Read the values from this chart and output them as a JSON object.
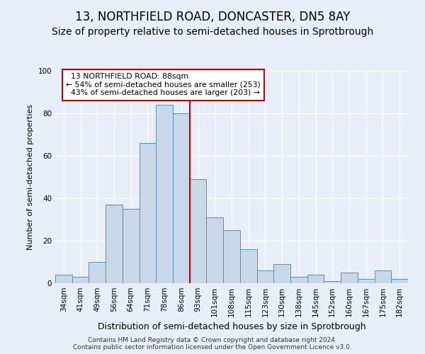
{
  "title": "13, NORTHFIELD ROAD, DONCASTER, DN5 8AY",
  "subtitle": "Size of property relative to semi-detached houses in Sprotbrough",
  "xlabel": "Distribution of semi-detached houses by size in Sprotbrough",
  "ylabel": "Number of semi-detached properties",
  "footer_line1": "Contains HM Land Registry data © Crown copyright and database right 2024.",
  "footer_line2": "Contains public sector information licensed under the Open Government Licence v3.0.",
  "categories": [
    "34sqm",
    "41sqm",
    "49sqm",
    "56sqm",
    "64sqm",
    "71sqm",
    "78sqm",
    "86sqm",
    "93sqm",
    "101sqm",
    "108sqm",
    "115sqm",
    "123sqm",
    "130sqm",
    "138sqm",
    "145sqm",
    "152sqm",
    "160sqm",
    "167sqm",
    "175sqm",
    "182sqm"
  ],
  "values": [
    4,
    3,
    10,
    37,
    35,
    66,
    84,
    80,
    49,
    31,
    25,
    16,
    6,
    9,
    3,
    4,
    1,
    5,
    2,
    6,
    2
  ],
  "bar_color": "#c8d8e8",
  "bar_edge_color": "#5b8db8",
  "property_label": "13 NORTHFIELD ROAD: 88sqm",
  "pct_smaller": 54,
  "pct_smaller_count": 253,
  "pct_larger": 43,
  "pct_larger_count": 203,
  "vline_color": "#cc0000",
  "vline_x": 7.5,
  "annotation_box_color": "#cc0000",
  "background_color": "#e8eef8",
  "plot_background_color": "#e8eef8",
  "ylim": [
    0,
    100
  ],
  "yticks": [
    0,
    20,
    40,
    60,
    80,
    100
  ],
  "grid_color": "#ffffff",
  "title_fontsize": 12,
  "subtitle_fontsize": 10,
  "ylabel_fontsize": 8,
  "xlabel_fontsize": 9,
  "tick_fontsize": 7.5,
  "footer_fontsize": 6.5
}
